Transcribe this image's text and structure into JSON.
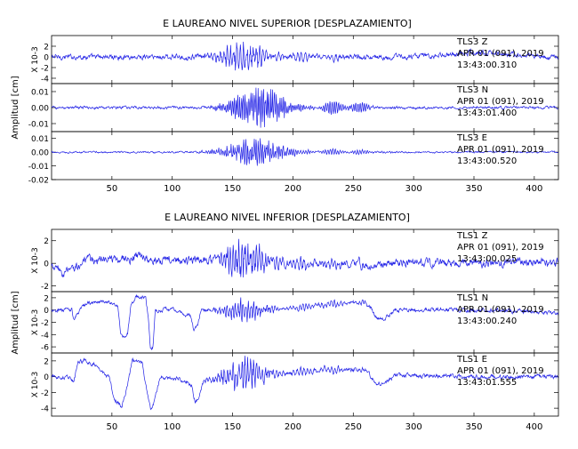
{
  "colors": {
    "trace": "#1f1fe6",
    "axis": "#000000",
    "background": "#ffffff"
  },
  "chart_data": [
    {
      "type": "line",
      "title": "E LAUREANO NIVEL SUPERIOR [DESPLAZAMIENTO]",
      "ylabel": "Amplitud [cm]",
      "xlim": [
        0,
        420
      ],
      "xticks": [
        "50",
        "100",
        "150",
        "200",
        "250",
        "300",
        "350",
        "400"
      ],
      "panels": [
        {
          "ylim": [
            -5,
            4
          ],
          "yticks": [
            "2",
            "0",
            "-2",
            "-4"
          ],
          "scale_label": "X 10-3",
          "trace_label": "TLS3   Z",
          "date_label": "APR 01 (091), 2019",
          "time_label": "13:43:00.310",
          "noise": 0.45,
          "burst": 2.6,
          "burst_center": 158,
          "burst_width": 20,
          "carrier": 0.9,
          "coda": 0.9,
          "coda_center": 205,
          "coda_width": 40,
          "drift": [
            [
              0,
              0.0
            ],
            [
              60,
              0.0
            ],
            [
              120,
              0.0
            ],
            [
              300,
              0.0
            ],
            [
              350,
              0.9
            ],
            [
              420,
              -0.2
            ]
          ]
        },
        {
          "ylim": [
            -0.015,
            0.015
          ],
          "yticks": [
            "0.01",
            "0.00",
            "-0.01"
          ],
          "trace_label": "TLS3   N",
          "date_label": "APR 01 (091), 2019",
          "time_label": "13:43:01.400",
          "noise": 0.0008,
          "burst": 0.0115,
          "burst_center": 172,
          "burst_width": 24,
          "carrier": 1.6,
          "coda": 0.0045,
          "coda_center": 240,
          "coda_width": 25,
          "drift": [
            [
              0,
              0.0
            ],
            [
              420,
              0.0
            ]
          ]
        },
        {
          "ylim": [
            -0.02,
            0.015
          ],
          "yticks": [
            "0.01",
            "0.00",
            "-0.01",
            "-0.02"
          ],
          "trace_label": "TLS3   E",
          "date_label": "APR 01 (091), 2019",
          "time_label": "13:43:00.520",
          "noise": 0.0006,
          "burst": 0.0095,
          "burst_center": 168,
          "burst_width": 26,
          "carrier": 1.4,
          "coda": 0.002,
          "coda_center": 230,
          "coda_width": 40,
          "drift": [
            [
              0,
              0.0
            ],
            [
              420,
              0.0
            ]
          ]
        }
      ]
    },
    {
      "type": "line",
      "title": "E LAUREANO NIVEL INFERIOR [DESPLAZAMIENTO]",
      "ylabel": "Amplitud [cm]",
      "xlim": [
        0,
        420
      ],
      "xticks": [
        "50",
        "100",
        "150",
        "200",
        "250",
        "300",
        "350",
        "400"
      ],
      "panels": [
        {
          "ylim": [
            -2.5,
            3
          ],
          "yticks": [
            "2",
            "0",
            "-2"
          ],
          "scale_label": "X 10-3",
          "trace_label": "TLS1   Z",
          "date_label": "APR 01 (091), 2019",
          "time_label": "13:43:00.025",
          "noise": 0.35,
          "burst": 1.7,
          "burst_center": 160,
          "burst_width": 18,
          "carrier": 1.0,
          "coda": 0.5,
          "coda_center": 210,
          "coda_width": 45,
          "drift": [
            [
              0,
              -0.3
            ],
            [
              10,
              -0.9
            ],
            [
              30,
              0.3
            ],
            [
              60,
              0.4
            ],
            [
              75,
              0.6
            ],
            [
              100,
              0.2
            ],
            [
              140,
              0.4
            ],
            [
              200,
              0.0
            ],
            [
              260,
              -0.2
            ],
            [
              300,
              0.1
            ],
            [
              330,
              0.0
            ],
            [
              380,
              0.0
            ],
            [
              420,
              0.1
            ]
          ]
        },
        {
          "ylim": [
            -7,
            3
          ],
          "yticks": [
            "2",
            "0",
            "-2",
            "-4",
            "-6"
          ],
          "scale_label": "X 10-3",
          "trace_label": "TLS1   N",
          "date_label": "APR 01 (091), 2019",
          "time_label": "13:43:00.240",
          "noise": 0.3,
          "burst": 1.8,
          "burst_center": 160,
          "burst_width": 18,
          "carrier": 1.1,
          "coda": 0.5,
          "coda_center": 215,
          "coda_width": 40,
          "drift": [
            [
              0,
              0.0
            ],
            [
              17,
              0.0
            ],
            [
              18,
              -1.5
            ],
            [
              25,
              0.5
            ],
            [
              30,
              1.0
            ],
            [
              42,
              1.5
            ],
            [
              50,
              1.2
            ],
            [
              55,
              0.4
            ],
            [
              57,
              -3.5
            ],
            [
              60,
              -4.5
            ],
            [
              63,
              -3.8
            ],
            [
              66,
              1.0
            ],
            [
              70,
              2.2
            ],
            [
              78,
              2.0
            ],
            [
              80,
              -1.0
            ],
            [
              82,
              -6.5
            ],
            [
              84,
              -6.0
            ],
            [
              86,
              0.0
            ],
            [
              100,
              0.2
            ],
            [
              115,
              -1.0
            ],
            [
              118,
              -3.5
            ],
            [
              121,
              -2.5
            ],
            [
              124,
              0.0
            ],
            [
              150,
              -0.2
            ],
            [
              200,
              0.3
            ],
            [
              230,
              1.0
            ],
            [
              260,
              1.2
            ],
            [
              265,
              0.5
            ],
            [
              268,
              -1.2
            ],
            [
              275,
              -1.4
            ],
            [
              285,
              0.0
            ],
            [
              300,
              0.1
            ],
            [
              360,
              0.0
            ],
            [
              420,
              -0.5
            ]
          ]
        },
        {
          "ylim": [
            -5,
            3
          ],
          "yticks": [
            "2",
            "0",
            "-2",
            "-4"
          ],
          "scale_label": "X 10-3",
          "trace_label": "TLS1   E",
          "date_label": "APR 01 (091), 2019",
          "time_label": "13:43:01.555",
          "noise": 0.25,
          "burst": 2.1,
          "burst_center": 160,
          "burst_width": 18,
          "carrier": 1.0,
          "coda": 0.5,
          "coda_center": 210,
          "coda_width": 45,
          "drift": [
            [
              0,
              0.0
            ],
            [
              16,
              0.0
            ],
            [
              18,
              -0.8
            ],
            [
              22,
              1.8
            ],
            [
              28,
              2.0
            ],
            [
              35,
              1.6
            ],
            [
              42,
              0.5
            ],
            [
              48,
              -0.2
            ],
            [
              52,
              -3.0
            ],
            [
              58,
              -3.8
            ],
            [
              63,
              -1.0
            ],
            [
              67,
              2.0
            ],
            [
              75,
              1.8
            ],
            [
              79,
              -2.0
            ],
            [
              82,
              -4.0
            ],
            [
              85,
              -3.2
            ],
            [
              90,
              0.0
            ],
            [
              105,
              -0.3
            ],
            [
              116,
              -1.0
            ],
            [
              119,
              -3.3
            ],
            [
              122,
              -2.5
            ],
            [
              126,
              -0.5
            ],
            [
              150,
              0.0
            ],
            [
              200,
              0.5
            ],
            [
              230,
              0.9
            ],
            [
              262,
              0.8
            ],
            [
              265,
              -0.3
            ],
            [
              270,
              -1.0
            ],
            [
              278,
              -0.6
            ],
            [
              285,
              0.2
            ],
            [
              300,
              0.1
            ],
            [
              360,
              0.0
            ],
            [
              420,
              0.0
            ]
          ]
        }
      ]
    }
  ]
}
